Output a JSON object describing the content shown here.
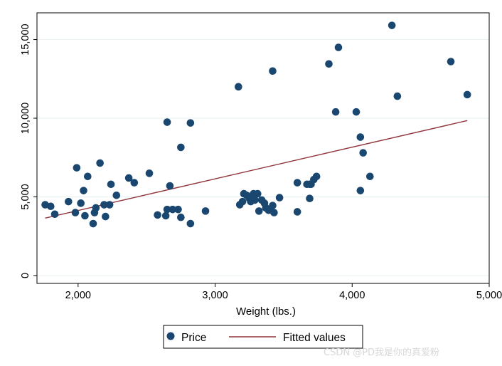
{
  "chart_data": {
    "type": "scatter",
    "xlabel": "Weight (lbs.)",
    "ylabel": "",
    "xlim": [
      1700,
      5000
    ],
    "ylim": [
      -500,
      16700
    ],
    "x_ticks": [
      2000,
      3000,
      4000,
      5000
    ],
    "x_tick_labels": [
      "2,000",
      "3,000",
      "4,000",
      "5,000"
    ],
    "y_ticks": [
      0,
      5000,
      10000,
      15000
    ],
    "y_tick_labels": [
      "0",
      "5,000",
      "10,000",
      "15,000"
    ],
    "grid": "horizontal",
    "legend_position": "bottom",
    "series": [
      {
        "name": "Price",
        "kind": "scatter",
        "color": "#1a476f",
        "points": [
          [
            1760,
            4500
          ],
          [
            1800,
            4400
          ],
          [
            1830,
            3900
          ],
          [
            1930,
            4700
          ],
          [
            1980,
            4000
          ],
          [
            1990,
            6850
          ],
          [
            2020,
            4600
          ],
          [
            2040,
            5400
          ],
          [
            2050,
            3800
          ],
          [
            2070,
            6300
          ],
          [
            2110,
            3300
          ],
          [
            2120,
            4000
          ],
          [
            2130,
            4300
          ],
          [
            2160,
            7150
          ],
          [
            2190,
            4500
          ],
          [
            2200,
            3750
          ],
          [
            2230,
            4500
          ],
          [
            2240,
            5800
          ],
          [
            2280,
            5100
          ],
          [
            2370,
            6200
          ],
          [
            2410,
            5900
          ],
          [
            2520,
            6500
          ],
          [
            2580,
            3850
          ],
          [
            2640,
            3800
          ],
          [
            2650,
            4200
          ],
          [
            2650,
            9750
          ],
          [
            2670,
            5700
          ],
          [
            2690,
            4200
          ],
          [
            2730,
            4200
          ],
          [
            2750,
            3700
          ],
          [
            2750,
            8150
          ],
          [
            2820,
            9700
          ],
          [
            2820,
            3300
          ],
          [
            2930,
            4100
          ],
          [
            3170,
            12000
          ],
          [
            3180,
            4500
          ],
          [
            3200,
            4700
          ],
          [
            3210,
            5200
          ],
          [
            3230,
            5100
          ],
          [
            3250,
            4900
          ],
          [
            3260,
            4700
          ],
          [
            3280,
            5200
          ],
          [
            3290,
            4800
          ],
          [
            3310,
            5200
          ],
          [
            3320,
            4100
          ],
          [
            3340,
            4800
          ],
          [
            3360,
            4600
          ],
          [
            3370,
            4300
          ],
          [
            3390,
            4150
          ],
          [
            3400,
            4200
          ],
          [
            3420,
            13000
          ],
          [
            3420,
            4450
          ],
          [
            3430,
            4000
          ],
          [
            3470,
            4950
          ],
          [
            3600,
            5900
          ],
          [
            3600,
            4050
          ],
          [
            3670,
            5800
          ],
          [
            3690,
            4900
          ],
          [
            3690,
            5800
          ],
          [
            3700,
            5800
          ],
          [
            3720,
            6100
          ],
          [
            3740,
            6300
          ],
          [
            3830,
            13450
          ],
          [
            3880,
            10400
          ],
          [
            3900,
            14500
          ],
          [
            4030,
            10400
          ],
          [
            4060,
            8800
          ],
          [
            4060,
            5400
          ],
          [
            4080,
            7800
          ],
          [
            4130,
            6300
          ],
          [
            4290,
            15900
          ],
          [
            4330,
            11400
          ],
          [
            4720,
            13600
          ],
          [
            4840,
            11500
          ]
        ]
      },
      {
        "name": "Fitted values",
        "kind": "line",
        "color": "#90353b",
        "points": [
          [
            1760,
            3650
          ],
          [
            4840,
            9850
          ]
        ]
      }
    ]
  }
}
